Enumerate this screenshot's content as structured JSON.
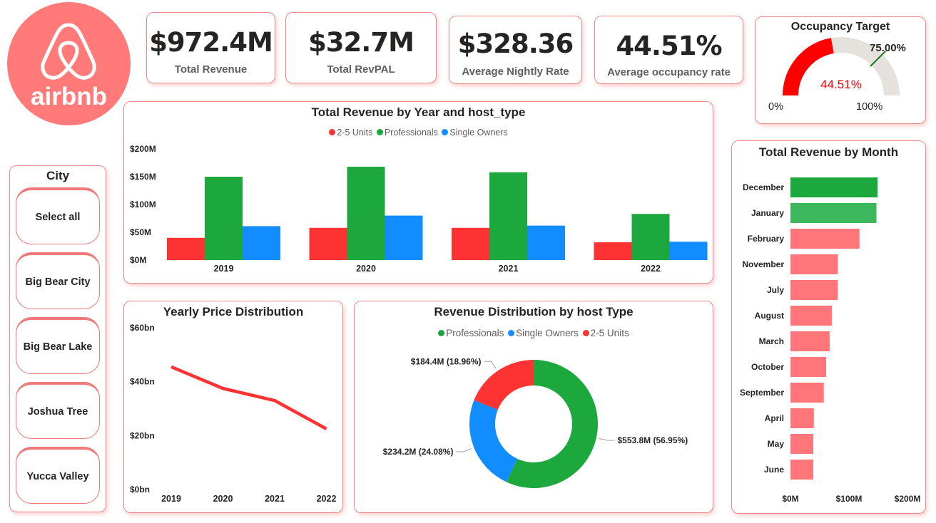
{
  "brand": {
    "logo_text": "airbnb",
    "logo_color": "#ff7a78"
  },
  "kpis": [
    {
      "value": "$972.4M",
      "label": "Total Revenue"
    },
    {
      "value": "$32.7M",
      "label": "Total RevPAL"
    },
    {
      "value": "$328.36",
      "label": "Average Nightly Rate"
    },
    {
      "value": "44.51%",
      "label": "Average occupancy rate"
    }
  ],
  "gauge": {
    "title": "Occupancy Target",
    "value": 44.51,
    "value_label": "44.51%",
    "target": 75.0,
    "target_label": "75.00%",
    "min_label": "0%",
    "max_label": "100%",
    "colors": {
      "fill": "#ff0000",
      "track": "#e5e1dc",
      "target": "#1a7a1a",
      "value_text": "#ff0000"
    }
  },
  "slicer": {
    "title": "City",
    "items": [
      "Select all",
      "Big Bear City",
      "Big Bear Lake",
      "Joshua Tree",
      "Yucca Valley"
    ]
  },
  "colors": {
    "two_five": "#fd3232",
    "professionals": "#1ca83c",
    "single": "#118dff",
    "month_top": "#1ca83c",
    "month_second": "#3cb75b",
    "month_other": "#ff767a"
  },
  "chart_data": [
    {
      "type": "bar",
      "title": "Total Revenue by Year and host_type",
      "categories": [
        "2019",
        "2020",
        "2021",
        "2022"
      ],
      "series": [
        {
          "name": "2-5 Units",
          "values": [
            40,
            58,
            58,
            32
          ]
        },
        {
          "name": "Professionals",
          "values": [
            150,
            168,
            158,
            83
          ]
        },
        {
          "name": "Single Owners",
          "values": [
            61,
            80,
            62,
            33
          ]
        }
      ],
      "yticks": [
        "$0M",
        "$50M",
        "$100M",
        "$150M",
        "$200M"
      ],
      "ylim": [
        0,
        200
      ],
      "legend": "top-center"
    },
    {
      "type": "line",
      "title": "Yearly Price Distribution",
      "x": [
        "2019",
        "2020",
        "2021",
        "2022"
      ],
      "values": [
        45.5,
        37.5,
        33.0,
        22.5
      ],
      "yticks": [
        "$0bn",
        "$20bn",
        "$40bn",
        "$60bn"
      ],
      "ylim": [
        0,
        60
      ]
    },
    {
      "type": "pie",
      "title": "Revenue Distribution by host Type",
      "series": [
        {
          "name": "Professionals",
          "value": 553.8,
          "label": "$553.8M (56.95%)"
        },
        {
          "name": "Single Owners",
          "value": 234.2,
          "label": "$234.2M (24.08%)"
        },
        {
          "name": "2-5 Units",
          "value": 184.4,
          "label": "$184.4M (18.96%)"
        }
      ],
      "legend": "top-center"
    },
    {
      "type": "bar",
      "orientation": "horizontal",
      "title": "Total Revenue by Month",
      "categories": [
        "December",
        "January",
        "February",
        "November",
        "July",
        "August",
        "March",
        "October",
        "September",
        "April",
        "May",
        "June"
      ],
      "values": [
        149,
        147,
        118,
        81,
        81,
        71,
        67,
        61,
        57,
        40,
        39,
        39
      ],
      "xticks": [
        "$0M",
        "$100M",
        "$200M"
      ],
      "xlim": [
        0,
        200
      ]
    }
  ]
}
